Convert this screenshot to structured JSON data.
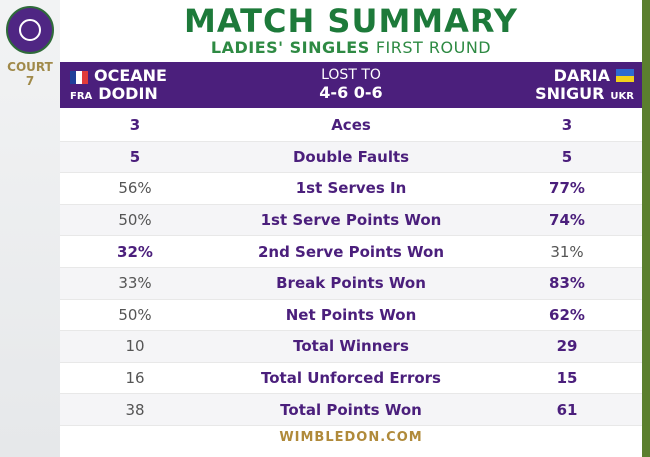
{
  "side": {
    "court_label": "COURT",
    "court_number": "7"
  },
  "title": "MATCH SUMMARY",
  "subtitle": {
    "bold": "LADIES' SINGLES",
    "light": "FIRST ROUND"
  },
  "player1": {
    "first": "OCEANE",
    "last": "DODIN",
    "country": "FRA"
  },
  "player2": {
    "first": "DARIA",
    "last": "SNIGUR",
    "country": "UKR"
  },
  "result": {
    "label": "LOST TO",
    "score": "4-6 0-6"
  },
  "stats": [
    {
      "left": "3",
      "label": "Aces",
      "right": "3",
      "winner": "both"
    },
    {
      "left": "5",
      "label": "Double Faults",
      "right": "5",
      "winner": "both"
    },
    {
      "left": "56%",
      "label": "1st Serves In",
      "right": "77%",
      "winner": "right"
    },
    {
      "left": "50%",
      "label": "1st Serve Points Won",
      "right": "74%",
      "winner": "right"
    },
    {
      "left": "32%",
      "label": "2nd Serve Points Won",
      "right": "31%",
      "winner": "left"
    },
    {
      "left": "33%",
      "label": "Break Points Won",
      "right": "83%",
      "winner": "right"
    },
    {
      "left": "50%",
      "label": "Net Points Won",
      "right": "62%",
      "winner": "right"
    },
    {
      "left": "10",
      "label": "Total Winners",
      "right": "29",
      "winner": "right"
    },
    {
      "left": "16",
      "label": "Total Unforced Errors",
      "right": "15",
      "winner": "right"
    },
    {
      "left": "38",
      "label": "Total Points Won",
      "right": "61",
      "winner": "right"
    }
  ],
  "footer": "WIMBLEDON.COM",
  "colors": {
    "purple": "#4b1f7c",
    "green": "#1d7a3a",
    "gold": "#b08a3a"
  }
}
